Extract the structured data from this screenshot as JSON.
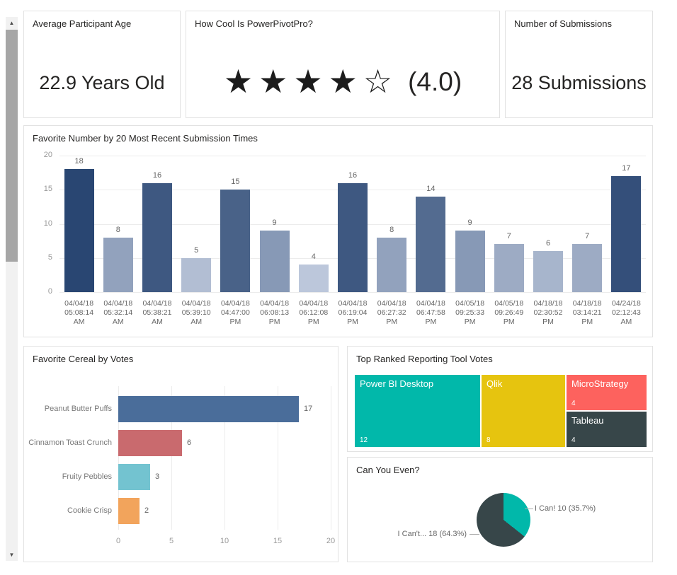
{
  "scrollbar": {
    "up_arrow": "▲",
    "down_arrow": "▼"
  },
  "kpis": {
    "age": {
      "title": "Average Participant Age",
      "value": "22.9 Years Old"
    },
    "rating": {
      "title": "How Cool Is PowerPivotPro?",
      "stars_filled": "★★★★",
      "stars_empty": "☆",
      "value_label": "(4.0)"
    },
    "submissions": {
      "title": "Number of Submissions",
      "value": "28 Submissions"
    }
  },
  "chart_data": [
    {
      "type": "bar",
      "title": "Favorite Number by 20 Most Recent Submission Times",
      "xlabel": "",
      "ylabel": "",
      "ylim": [
        0,
        20
      ],
      "yticks": [
        0,
        5,
        10,
        15,
        20
      ],
      "grid": true,
      "legend": false,
      "categories": [
        [
          "04/04/18",
          "05:08:14",
          "AM"
        ],
        [
          "04/04/18",
          "05:32:14",
          "AM"
        ],
        [
          "04/04/18",
          "05:38:21",
          "AM"
        ],
        [
          "04/04/18",
          "05:39:10",
          "AM"
        ],
        [
          "04/04/18",
          "04:47:00",
          "PM"
        ],
        [
          "04/04/18",
          "06:08:13",
          "PM"
        ],
        [
          "04/04/18",
          "06:12:08",
          "PM"
        ],
        [
          "04/04/18",
          "06:19:04",
          "PM"
        ],
        [
          "04/04/18",
          "06:27:32",
          "PM"
        ],
        [
          "04/04/18",
          "06:47:58",
          "PM"
        ],
        [
          "04/05/18",
          "09:25:33",
          "PM"
        ],
        [
          "04/05/18",
          "09:26:49",
          "PM"
        ],
        [
          "04/18/18",
          "02:30:52",
          "PM"
        ],
        [
          "04/18/18",
          "03:14:21",
          "PM"
        ],
        [
          "04/24/18",
          "02:12:43",
          "AM"
        ]
      ],
      "values": [
        18,
        8,
        16,
        5,
        15,
        9,
        4,
        16,
        8,
        14,
        9,
        7,
        6,
        7,
        17
      ],
      "colors": [
        "#294672",
        "#92A2BD",
        "#3E5881",
        "#B2BED3",
        "#496288",
        "#8799B6",
        "#BCC7DB",
        "#3E5881",
        "#92A2BD",
        "#536B90",
        "#8799B6",
        "#9DABC4",
        "#A7B5CC",
        "#9DABC4",
        "#344F7A"
      ]
    },
    {
      "type": "bar",
      "orientation": "horizontal",
      "title": "Favorite Cereal by Votes",
      "xlim": [
        0,
        20
      ],
      "xticks": [
        0,
        5,
        10,
        15,
        20
      ],
      "grid": true,
      "legend": false,
      "categories": [
        "Peanut Butter Puffs",
        "Cinnamon Toast Crunch",
        "Fruity Pebbles",
        "Cookie Crisp"
      ],
      "values": [
        17,
        6,
        3,
        2
      ],
      "colors": [
        "#4A6D9A",
        "#C96A6E",
        "#73C3D0",
        "#F2A45C"
      ]
    },
    {
      "type": "treemap",
      "title": "Top Ranked Reporting Tool Votes",
      "items": [
        {
          "label": "Power BI Desktop",
          "value": 12,
          "color": "#01B8AA"
        },
        {
          "label": "Qlik",
          "value": 8,
          "color": "#E6C40F"
        },
        {
          "label": "MicroStrategy",
          "value": 4,
          "color": "#FD625E"
        },
        {
          "label": "Tableau",
          "value": 4,
          "color": "#374649"
        }
      ]
    },
    {
      "type": "pie",
      "title": "Can You Even?",
      "legend": false,
      "slices": [
        {
          "label": "I Can!",
          "value": 10,
          "pct": "35.7%",
          "color": "#01B8AA",
          "display": "I Can! 10 (35.7%)"
        },
        {
          "label": "I Can't...",
          "value": 18,
          "pct": "64.3%",
          "color": "#374649",
          "display": "I Can't... 18 (64.3%)"
        }
      ]
    }
  ]
}
